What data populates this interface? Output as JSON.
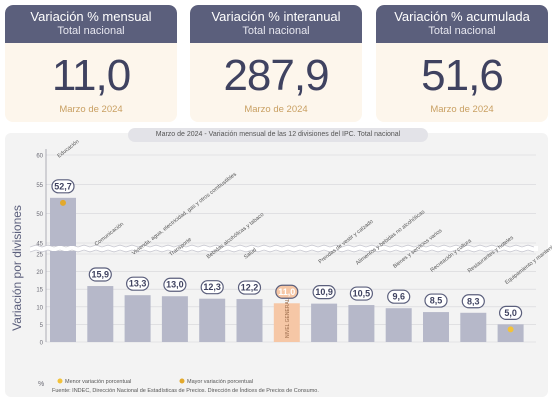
{
  "cards": [
    {
      "title": "Variación % mensual",
      "subtitle": "Total nacional",
      "value": "11,0",
      "date": "Marzo de 2024"
    },
    {
      "title": "Variación % interanual",
      "subtitle": "Total nacional",
      "value": "287,9",
      "date": "Marzo de 2024"
    },
    {
      "title": "Variación % acumulada",
      "subtitle": "Total nacional",
      "value": "51,6",
      "date": "Marzo de 2024"
    }
  ],
  "chart_data": {
    "type": "bar",
    "title": "Marzo de 2024 - Variación mensual de las 12 divisiones del IPC. Total nacional",
    "ylabel": "Variación por divisiones",
    "yunit": "%",
    "ylim": [
      0,
      60
    ],
    "axis_break": [
      25,
      45
    ],
    "yticks_lower": [
      0,
      5,
      10,
      15,
      20,
      25
    ],
    "yticks_upper": [
      45,
      50,
      55,
      60
    ],
    "categories": [
      "Educación",
      "Comunicación",
      "Vivienda, agua, electricidad, gas y otros combustibles",
      "Transporte",
      "Bebidas alcohólicas y tabaco",
      "Salud",
      "NIVEL GENERAL",
      "Prendas de vestir y calzado",
      "Alimentos y bebidas no alcohólicas",
      "Bienes y servicios varios",
      "Recreación y cultura",
      "Restaurantes y hoteles",
      "Equipamiento y mantenimiento del hogar"
    ],
    "values": [
      52.7,
      15.9,
      13.3,
      13.0,
      12.3,
      12.2,
      11.0,
      10.9,
      10.5,
      9.6,
      8.5,
      8.3,
      5.0
    ],
    "value_labels": [
      "52,7",
      "15,9",
      "13,3",
      "13,0",
      "12,3",
      "12,2",
      "11,0",
      "10,9",
      "10,5",
      "9,6",
      "8,5",
      "8,3",
      "5,0"
    ],
    "highlight_index": 6,
    "max_index": 0,
    "min_index": 12,
    "colors": {
      "bar": "#b6b8c9",
      "general": "#f6c7a6",
      "max_marker": "#e3a92c",
      "min_marker": "#f3c23a",
      "value_badge": "#5b5f7c"
    },
    "legend": [
      {
        "label": "Menor variación porcentual",
        "color": "#f3c23a"
      },
      {
        "label": "Mayor variación porcentual",
        "color": "#e3a92c"
      }
    ],
    "legend_placement": "bottom-left",
    "source": "Fuente: INDEC, Dirección Nacional de Estadísticas de Precios. Dirección de Índices de Precios de Consumo."
  }
}
